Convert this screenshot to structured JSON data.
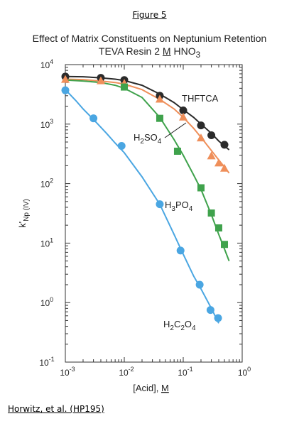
{
  "figure_label": "Figure 5",
  "citation": "Horwitz, et al. (HP195)",
  "chart_data": {
    "type": "scatter",
    "title": "Effect of Matrix Constituents on Neptunium Retention",
    "subtitle_parts": [
      "TEVA Resin  2 ",
      "M",
      " HNO",
      "3"
    ],
    "xlabel_parts": [
      "[Acid], ",
      "M"
    ],
    "ylabel_parts": [
      "k'",
      "Np",
      " (IV)"
    ],
    "xscale": "log",
    "yscale": "log",
    "xlim": [
      0.001,
      1
    ],
    "ylim": [
      0.1,
      10000
    ],
    "x_ticks": [
      {
        "base": "10",
        "exp": "-3"
      },
      {
        "base": "10",
        "exp": "-2"
      },
      {
        "base": "10",
        "exp": "-1"
      },
      {
        "base": "10",
        "exp": "0"
      }
    ],
    "y_ticks": [
      {
        "base": "10",
        "exp": "-1"
      },
      {
        "base": "10",
        "exp": "0"
      },
      {
        "base": "10",
        "exp": "1"
      },
      {
        "base": "10",
        "exp": "2"
      },
      {
        "base": "10",
        "exp": "3"
      },
      {
        "base": "10",
        "exp": "4"
      }
    ],
    "series": [
      {
        "name": "THFTCA",
        "name_parts": [
          "THFTCA"
        ],
        "marker": "circle",
        "color": "#2b2b2b",
        "x": [
          0.001,
          0.004,
          0.01,
          0.04,
          0.1,
          0.2,
          0.3,
          0.5
        ],
        "y": [
          6300,
          6000,
          5500,
          3000,
          1700,
          950,
          650,
          450
        ],
        "curve_x": [
          0.001,
          0.002,
          0.004,
          0.007,
          0.01,
          0.02,
          0.04,
          0.07,
          0.1,
          0.15,
          0.2,
          0.3,
          0.4,
          0.5,
          0.6
        ],
        "curve_y": [
          6300,
          6250,
          6000,
          5700,
          5400,
          4500,
          3200,
          2300,
          1750,
          1300,
          1000,
          700,
          520,
          430,
          370
        ]
      },
      {
        "name": "H2SO4",
        "name_parts": [
          "H",
          "2",
          "SO",
          "4"
        ],
        "marker": "triangle",
        "color": "#ef8f5a",
        "x": [
          0.001,
          0.004,
          0.01,
          0.04,
          0.1,
          0.2,
          0.3,
          0.4,
          0.5
        ],
        "y": [
          5600,
          5300,
          4800,
          2600,
          1300,
          580,
          290,
          220,
          180
        ],
        "curve_x": [
          0.001,
          0.002,
          0.004,
          0.007,
          0.01,
          0.02,
          0.04,
          0.07,
          0.1,
          0.15,
          0.2,
          0.3,
          0.4,
          0.5,
          0.6
        ],
        "curve_y": [
          5700,
          5600,
          5300,
          5000,
          4700,
          3800,
          2600,
          1800,
          1300,
          850,
          600,
          360,
          250,
          190,
          150
        ]
      },
      {
        "name": "H3PO4",
        "name_parts": [
          "H",
          "3",
          "PO",
          "4"
        ],
        "marker": "square",
        "color": "#3fa24c",
        "x": [
          0.01,
          0.04,
          0.08,
          0.2,
          0.3,
          0.4,
          0.5
        ],
        "y": [
          4200,
          1250,
          350,
          85,
          32,
          18,
          9.5
        ],
        "curve_x": [
          0.001,
          0.002,
          0.004,
          0.007,
          0.01,
          0.02,
          0.04,
          0.07,
          0.1,
          0.15,
          0.2,
          0.3,
          0.4,
          0.5,
          0.6
        ],
        "curve_y": [
          5500,
          5300,
          5000,
          4500,
          4000,
          2800,
          1300,
          550,
          300,
          140,
          80,
          30,
          14,
          8,
          5
        ]
      },
      {
        "name": "H2C2O4",
        "name_parts": [
          "H",
          "2",
          "C",
          "2",
          "O",
          "4"
        ],
        "marker": "circle",
        "color": "#4aa6e2",
        "x": [
          0.001,
          0.003,
          0.009,
          0.04,
          0.09,
          0.19,
          0.29,
          0.39
        ],
        "y": [
          3700,
          1250,
          430,
          45,
          7.5,
          2.0,
          0.75,
          0.55
        ],
        "curve_x": [
          0.001,
          0.0015,
          0.002,
          0.003,
          0.005,
          0.007,
          0.01,
          0.02,
          0.04,
          0.07,
          0.1,
          0.15,
          0.2,
          0.3,
          0.4
        ],
        "curve_y": [
          3800,
          2500,
          1800,
          1200,
          700,
          480,
          330,
          130,
          45,
          14,
          6.5,
          2.8,
          1.7,
          0.8,
          0.45
        ]
      }
    ],
    "annotations": [
      {
        "text_parts": [
          "THFTCA"
        ],
        "target": "THFTCA"
      },
      {
        "text_parts": [
          "H",
          "2",
          "SO",
          "4"
        ],
        "target": "H2SO4",
        "pointer": true
      },
      {
        "text_parts": [
          "H",
          "3",
          "PO",
          "4"
        ],
        "target": "H3PO4"
      },
      {
        "text_parts": [
          "H",
          "2",
          "C",
          "2",
          "O",
          "4"
        ],
        "target": "H2C2O4"
      }
    ],
    "grid": false,
    "legend": "none"
  }
}
